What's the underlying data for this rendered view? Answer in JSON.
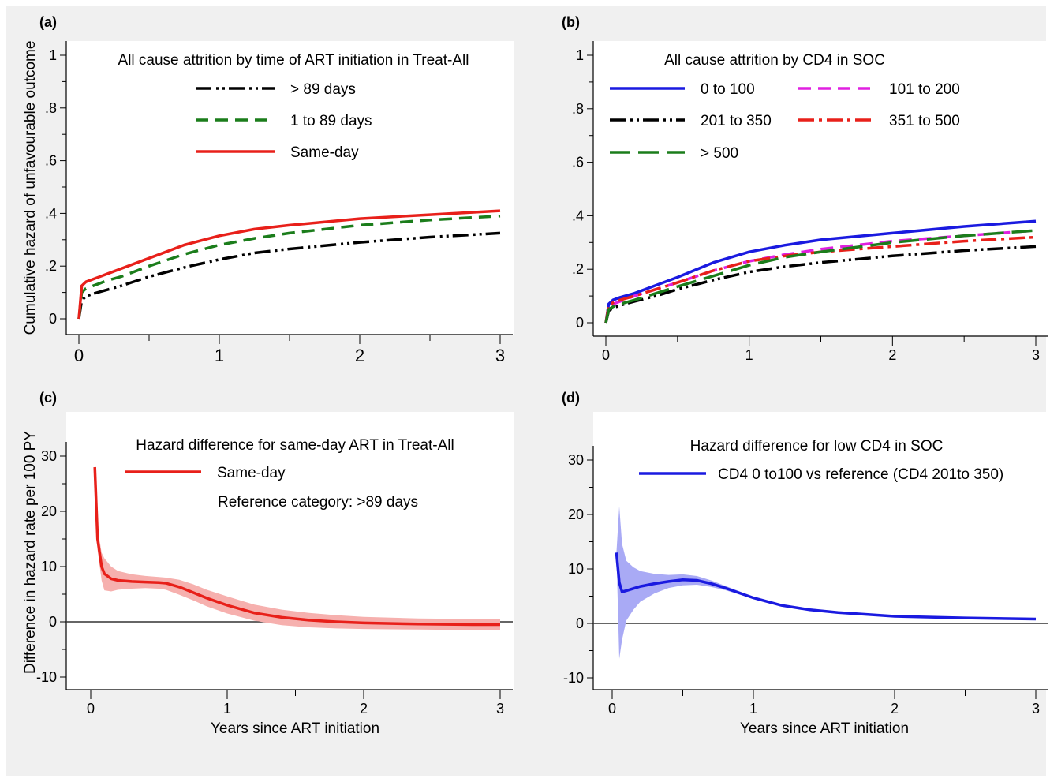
{
  "chart_data": [
    {
      "panel": "(a)",
      "type": "line",
      "legend_title": "All cause attrition by time of ART initiation in Treat-All",
      "ylabel": "Cumulative hazard of unfavourable outcome",
      "xlabel": "",
      "xlim": [
        0,
        3
      ],
      "ylim": [
        0,
        1
      ],
      "x_ticks": [
        0,
        1,
        2,
        3
      ],
      "y_ticks": [
        0,
        0.2,
        0.4,
        0.6,
        0.8,
        1
      ],
      "y_tick_labels": [
        "0",
        ".2",
        ".4",
        ".6",
        ".8",
        "1"
      ],
      "legend_position": "top-left, inside",
      "series": [
        {
          "name": "> 89 days",
          "color": "#000000",
          "dash": "dashdotdot",
          "x": [
            0,
            0.02,
            0.05,
            0.1,
            0.2,
            0.3,
            0.5,
            0.75,
            1.0,
            1.25,
            1.5,
            2.0,
            2.5,
            3.0
          ],
          "y": [
            0,
            0.07,
            0.085,
            0.095,
            0.11,
            0.125,
            0.16,
            0.195,
            0.225,
            0.25,
            0.265,
            0.29,
            0.31,
            0.325
          ]
        },
        {
          "name": "1 to 89 days",
          "color": "#1b7d1b",
          "dash": "dash",
          "x": [
            0,
            0.02,
            0.05,
            0.1,
            0.2,
            0.3,
            0.5,
            0.75,
            1.0,
            1.25,
            1.5,
            2.0,
            2.5,
            3.0
          ],
          "y": [
            0,
            0.1,
            0.115,
            0.125,
            0.145,
            0.16,
            0.2,
            0.245,
            0.28,
            0.305,
            0.325,
            0.355,
            0.375,
            0.39
          ]
        },
        {
          "name": "Same-day",
          "color": "#e8201a",
          "dash": "solid",
          "x": [
            0,
            0.02,
            0.05,
            0.1,
            0.2,
            0.3,
            0.5,
            0.75,
            1.0,
            1.25,
            1.5,
            2.0,
            2.5,
            3.0
          ],
          "y": [
            0,
            0.125,
            0.14,
            0.15,
            0.17,
            0.19,
            0.23,
            0.28,
            0.315,
            0.34,
            0.355,
            0.38,
            0.395,
            0.41
          ]
        }
      ]
    },
    {
      "panel": "(b)",
      "type": "line",
      "legend_title": "All cause attrition by CD4 in SOC",
      "ylabel": "",
      "xlabel": "",
      "xlim": [
        0,
        3
      ],
      "ylim": [
        0,
        1
      ],
      "x_ticks": [
        0,
        1,
        2,
        3
      ],
      "y_ticks": [
        0,
        0.2,
        0.4,
        0.6,
        0.8,
        1
      ],
      "y_tick_labels": [
        "0",
        ".2",
        ".4",
        ".6",
        ".8",
        "1"
      ],
      "legend_position": "top, inside",
      "series": [
        {
          "name": "0 to 100",
          "color": "#1a1ae0",
          "dash": "solid",
          "x": [
            0,
            0.02,
            0.05,
            0.1,
            0.2,
            0.35,
            0.5,
            0.75,
            1.0,
            1.25,
            1.5,
            2.0,
            2.5,
            3.0
          ],
          "y": [
            0,
            0.07,
            0.085,
            0.095,
            0.11,
            0.14,
            0.17,
            0.225,
            0.265,
            0.29,
            0.31,
            0.335,
            0.36,
            0.38
          ]
        },
        {
          "name": "101 to 200",
          "color": "#e020e0",
          "dash": "dash",
          "x": [
            0,
            0.02,
            0.05,
            0.1,
            0.2,
            0.35,
            0.5,
            0.75,
            1.0,
            1.25,
            1.5,
            2.0,
            2.5,
            3.0
          ],
          "y": [
            0,
            0.06,
            0.07,
            0.08,
            0.1,
            0.125,
            0.15,
            0.195,
            0.23,
            0.255,
            0.275,
            0.305,
            0.325,
            0.345
          ]
        },
        {
          "name": "201 to 350",
          "color": "#000000",
          "dash": "dashdotdot",
          "x": [
            0,
            0.02,
            0.05,
            0.1,
            0.2,
            0.35,
            0.5,
            0.75,
            1.0,
            1.25,
            1.5,
            2.0,
            2.5,
            3.0
          ],
          "y": [
            0,
            0.045,
            0.055,
            0.065,
            0.08,
            0.1,
            0.125,
            0.16,
            0.19,
            0.21,
            0.225,
            0.25,
            0.27,
            0.285
          ]
        },
        {
          "name": "351 to 500",
          "color": "#e8201a",
          "dash": "dashdot",
          "x": [
            0,
            0.02,
            0.05,
            0.1,
            0.2,
            0.35,
            0.5,
            0.75,
            1.0,
            1.25,
            1.5,
            2.0,
            2.5,
            3.0
          ],
          "y": [
            0,
            0.065,
            0.075,
            0.085,
            0.1,
            0.125,
            0.15,
            0.195,
            0.23,
            0.25,
            0.265,
            0.285,
            0.305,
            0.32
          ]
        },
        {
          "name": "> 500",
          "color": "#1b7d1b",
          "dash": "longdash",
          "x": [
            0,
            0.02,
            0.05,
            0.1,
            0.2,
            0.35,
            0.5,
            0.75,
            1.0,
            1.25,
            1.5,
            2.0,
            2.5,
            3.0
          ],
          "y": [
            0,
            0.05,
            0.06,
            0.07,
            0.085,
            0.11,
            0.135,
            0.175,
            0.215,
            0.245,
            0.265,
            0.3,
            0.325,
            0.345
          ]
        }
      ]
    },
    {
      "panel": "(c)",
      "type": "area",
      "legend_title": "Hazard difference for same-day ART in Treat-All",
      "annotation": "Reference category: >89 days",
      "ylabel": "Difference in hazard rate per 100 PY",
      "xlabel": "Years since ART initiation",
      "xlim": [
        0,
        3
      ],
      "ylim": [
        -10,
        30
      ],
      "x_ticks": [
        0,
        1,
        2,
        3
      ],
      "y_ticks": [
        -10,
        0,
        10,
        20,
        30
      ],
      "reference_line": 0,
      "legend_position": "top-left, inside",
      "series": [
        {
          "name": "Same-day",
          "color": "#e8201a",
          "band_color": "#f6b0ae",
          "x": [
            0.03,
            0.05,
            0.08,
            0.1,
            0.15,
            0.2,
            0.3,
            0.4,
            0.5,
            0.55,
            0.65,
            0.75,
            0.85,
            1.0,
            1.2,
            1.4,
            1.6,
            1.8,
            2.0,
            2.4,
            2.8,
            3.0
          ],
          "y": [
            28,
            15,
            10,
            8.7,
            7.8,
            7.5,
            7.3,
            7.2,
            7.1,
            7.0,
            6.3,
            5.3,
            4.3,
            3.0,
            1.6,
            0.8,
            0.3,
            0.0,
            -0.2,
            -0.4,
            -0.5,
            -0.5
          ],
          "lower": [
            28,
            13,
            7.5,
            5.7,
            5.5,
            5.8,
            6.0,
            6.1,
            6.0,
            5.8,
            4.9,
            3.9,
            2.8,
            1.5,
            0.2,
            -0.6,
            -1.0,
            -1.2,
            -1.3,
            -1.4,
            -1.5,
            -1.5
          ],
          "upper": [
            28,
            17,
            12.5,
            11.5,
            10.0,
            9.2,
            8.6,
            8.3,
            8.1,
            8.0,
            7.6,
            6.8,
            5.8,
            4.6,
            3.1,
            2.2,
            1.6,
            1.2,
            0.9,
            0.6,
            0.5,
            0.5
          ]
        }
      ]
    },
    {
      "panel": "(d)",
      "type": "area",
      "legend_title": "Hazard difference for low CD4 in SOC",
      "ylabel": "",
      "xlabel": "Years since ART initiation",
      "xlim": [
        0,
        3
      ],
      "ylim": [
        -10,
        30
      ],
      "x_ticks": [
        0,
        1,
        2,
        3
      ],
      "y_ticks": [
        -10,
        0,
        10,
        20,
        30
      ],
      "reference_line": 0,
      "legend_position": "top, inside",
      "series": [
        {
          "name": "CD4 0 to100 vs reference (CD4 201to 350)",
          "color": "#1a1ae0",
          "band_color": "#a9aaf5",
          "x": [
            0.03,
            0.05,
            0.07,
            0.1,
            0.15,
            0.2,
            0.3,
            0.4,
            0.5,
            0.6,
            0.7,
            0.8,
            0.9,
            1.0,
            1.2,
            1.4,
            1.6,
            2.0,
            2.5,
            3.0
          ],
          "y": [
            13,
            7.5,
            5.8,
            6.0,
            6.4,
            6.8,
            7.3,
            7.7,
            8.0,
            7.9,
            7.3,
            6.5,
            5.6,
            4.7,
            3.3,
            2.5,
            2.0,
            1.3,
            1.0,
            0.8
          ],
          "lower": [
            13,
            -6.5,
            -3.0,
            0.5,
            2.5,
            4.0,
            5.5,
            6.5,
            7.0,
            7.1,
            6.7,
            6.1,
            5.3,
            4.5,
            3.2,
            2.4,
            1.9,
            1.2,
            0.9,
            0.7
          ],
          "upper": [
            13,
            21.5,
            14.6,
            11.5,
            10.3,
            9.6,
            9.1,
            8.9,
            9.0,
            8.7,
            7.9,
            6.9,
            5.9,
            4.9,
            3.4,
            2.6,
            2.1,
            1.4,
            1.1,
            0.9
          ]
        }
      ]
    }
  ]
}
